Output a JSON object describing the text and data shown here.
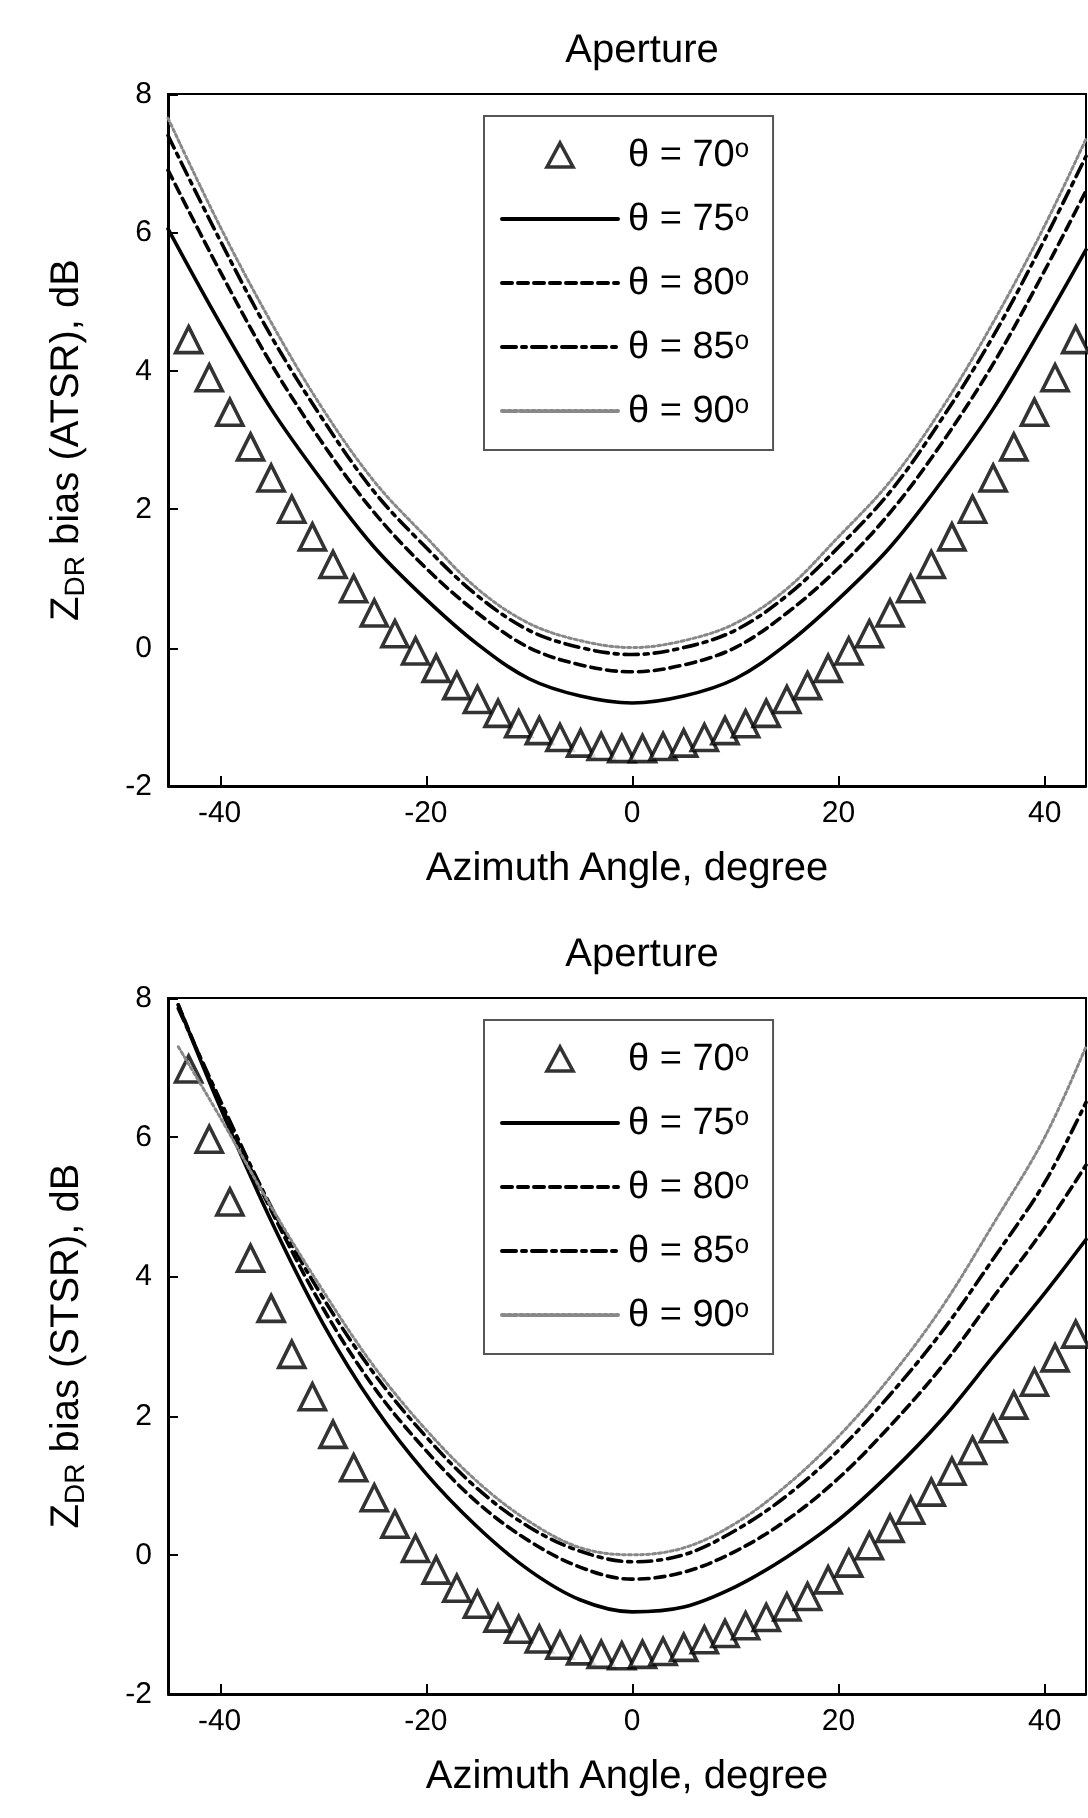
{
  "chart_data": [
    {
      "type": "line",
      "title": "Aperture",
      "xlabel": "Azimuth Angle, degree",
      "ylabel": "Z$_{DR}$ bias (ATSR), dB",
      "xlim": [
        -45,
        44
      ],
      "xticks": [
        -40,
        -20,
        0,
        20,
        40
      ],
      "ylim": [
        -2,
        8
      ],
      "yticks": [
        -2,
        0,
        2,
        4,
        6,
        8
      ],
      "grid": false,
      "legend": "top",
      "series": [
        {
          "name": "θ = 70ᵒ",
          "type": "scatter",
          "marker": "triangle",
          "color": "#000000",
          "x": [
            -43,
            -41,
            -39,
            -37,
            -35,
            -33,
            -31,
            -29,
            -27,
            -25,
            -23,
            -21,
            -19,
            -17,
            -15,
            -13,
            -11,
            -9,
            -7,
            -5,
            -3,
            -1,
            1,
            3,
            5,
            7,
            9,
            11,
            13,
            15,
            17,
            19,
            21,
            23,
            25,
            27,
            29,
            31,
            33,
            35,
            37,
            39,
            41,
            43
          ],
          "values": [
            4.45,
            3.9,
            3.4,
            2.9,
            2.45,
            2.0,
            1.6,
            1.2,
            0.85,
            0.5,
            0.2,
            -0.05,
            -0.3,
            -0.55,
            -0.75,
            -0.95,
            -1.1,
            -1.2,
            -1.3,
            -1.38,
            -1.43,
            -1.46,
            -1.46,
            -1.43,
            -1.38,
            -1.3,
            -1.2,
            -1.1,
            -0.95,
            -0.75,
            -0.55,
            -0.3,
            -0.05,
            0.2,
            0.5,
            0.85,
            1.2,
            1.6,
            2.0,
            2.45,
            2.9,
            3.4,
            3.9,
            4.45
          ]
        },
        {
          "name": "θ = 75ᵒ",
          "type": "line",
          "marker": "none",
          "line_style": "solid",
          "color": "#000000",
          "x": [
            -45,
            -40,
            -35,
            -30,
            -25,
            -20,
            -15,
            -10,
            -5,
            0,
            5,
            10,
            15,
            20,
            25,
            30,
            35,
            40,
            44
          ],
          "values": [
            6.05,
            4.7,
            3.45,
            2.4,
            1.45,
            0.7,
            0.05,
            -0.45,
            -0.7,
            -0.8,
            -0.7,
            -0.45,
            0.05,
            0.7,
            1.45,
            2.4,
            3.45,
            4.7,
            5.75
          ]
        },
        {
          "name": "θ = 80ᵒ",
          "type": "line",
          "marker": "none",
          "line_style": "dashed",
          "color": "#000000",
          "x": [
            -45,
            -40,
            -35,
            -30,
            -25,
            -20,
            -15,
            -10,
            -5,
            0,
            5,
            10,
            15,
            20,
            25,
            30,
            35,
            40,
            44
          ],
          "values": [
            6.9,
            5.45,
            4.1,
            2.95,
            1.95,
            1.15,
            0.5,
            0.0,
            -0.25,
            -0.35,
            -0.25,
            0.0,
            0.5,
            1.15,
            1.95,
            2.95,
            4.1,
            5.45,
            6.6
          ]
        },
        {
          "name": "θ = 85ᵒ",
          "type": "line",
          "marker": "none",
          "line_style": "dashdot",
          "color": "#000000",
          "x": [
            -45,
            -40,
            -35,
            -30,
            -25,
            -20,
            -15,
            -10,
            -5,
            0,
            5,
            10,
            15,
            20,
            25,
            30,
            35,
            40,
            44
          ],
          "values": [
            7.4,
            5.9,
            4.5,
            3.3,
            2.25,
            1.45,
            0.75,
            0.25,
            0.0,
            -0.1,
            0.0,
            0.25,
            0.75,
            1.45,
            2.25,
            3.3,
            4.5,
            5.9,
            7.1
          ]
        },
        {
          "name": "θ = 90ᵒ",
          "type": "line",
          "marker": "none",
          "line_style": "dotted",
          "color": "#888888",
          "x": [
            -45,
            -40,
            -35,
            -30,
            -25,
            -20,
            -15,
            -10,
            -5,
            0,
            5,
            10,
            15,
            20,
            25,
            30,
            35,
            40,
            44
          ],
          "values": [
            7.65,
            6.1,
            4.7,
            3.45,
            2.4,
            1.6,
            0.85,
            0.35,
            0.1,
            0,
            0.1,
            0.35,
            0.85,
            1.6,
            2.4,
            3.45,
            4.7,
            6.1,
            7.35
          ]
        }
      ]
    },
    {
      "type": "line",
      "title": "Aperture",
      "xlabel": "Azimuth Angle, degree",
      "ylabel": "Z$_{DR}$ bias (STSR), dB",
      "xlim": [
        -45,
        44
      ],
      "xticks": [
        -40,
        -20,
        0,
        20,
        40
      ],
      "ylim": [
        -2,
        8
      ],
      "yticks": [
        -2,
        0,
        2,
        4,
        6,
        8
      ],
      "grid": false,
      "legend": "top",
      "series": [
        {
          "name": "θ = 70ᵒ",
          "type": "scatter",
          "marker": "triangle",
          "color": "#000000",
          "x": [
            -43,
            -41,
            -39,
            -37,
            -35,
            -33,
            -31,
            -29,
            -27,
            -25,
            -23,
            -21,
            -19,
            -17,
            -15,
            -13,
            -11,
            -9,
            -7,
            -5,
            -3,
            -1,
            1,
            3,
            5,
            7,
            9,
            11,
            13,
            15,
            17,
            19,
            21,
            23,
            25,
            27,
            29,
            31,
            33,
            35,
            37,
            39,
            41,
            43
          ],
          "values": [
            6.98,
            5.97,
            5.07,
            4.26,
            3.54,
            2.88,
            2.27,
            1.73,
            1.25,
            0.82,
            0.44,
            0.09,
            -0.22,
            -0.48,
            -0.71,
            -0.91,
            -1.07,
            -1.21,
            -1.3,
            -1.38,
            -1.43,
            -1.45,
            -1.43,
            -1.39,
            -1.33,
            -1.22,
            -1.13,
            -1.02,
            -0.9,
            -0.75,
            -0.6,
            -0.36,
            -0.12,
            0.13,
            0.38,
            0.64,
            0.9,
            1.2,
            1.5,
            1.81,
            2.15,
            2.48,
            2.83,
            3.17
          ]
        },
        {
          "name": "θ = 75ᵒ",
          "type": "line",
          "marker": "none",
          "line_style": "solid",
          "color": "#000000",
          "x": [
            -44,
            -40,
            -35,
            -30,
            -25,
            -20,
            -15,
            -10,
            -5,
            0,
            5,
            10,
            15,
            20,
            25,
            30,
            35,
            40,
            44
          ],
          "values": [
            7.9,
            6.45,
            4.8,
            3.33,
            2.13,
            1.17,
            0.4,
            -0.22,
            -0.65,
            -0.82,
            -0.75,
            -0.46,
            -0.03,
            0.5,
            1.17,
            1.94,
            2.85,
            3.76,
            4.53
          ]
        },
        {
          "name": "θ = 80ᵒ",
          "type": "line",
          "marker": "none",
          "line_style": "dashed",
          "color": "#000000",
          "x": [
            -44,
            -40,
            -35,
            -30,
            -25,
            -20,
            -15,
            -10,
            -5,
            0,
            5,
            10,
            15,
            20,
            25,
            30,
            35,
            40,
            44
          ],
          "values": [
            7.9,
            6.5,
            4.95,
            3.55,
            2.4,
            1.5,
            0.75,
            0.2,
            -0.18,
            -0.35,
            -0.25,
            0.05,
            0.5,
            1.1,
            1.85,
            2.7,
            3.7,
            4.7,
            5.6
          ]
        },
        {
          "name": "θ = 85ᵒ",
          "type": "line",
          "marker": "none",
          "line_style": "dashdot",
          "color": "#000000",
          "x": [
            -44,
            -40,
            -35,
            -30,
            -25,
            -20,
            -15,
            -10,
            -5,
            0,
            5,
            10,
            15,
            20,
            25,
            30,
            35,
            40,
            44
          ],
          "values": [
            7.85,
            6.55,
            5.0,
            3.7,
            2.6,
            1.7,
            0.95,
            0.4,
            0.05,
            -0.1,
            0.0,
            0.35,
            0.85,
            1.5,
            2.3,
            3.2,
            4.25,
            5.35,
            6.5
          ]
        },
        {
          "name": "θ = 90ᵒ",
          "type": "line",
          "marker": "none",
          "line_style": "dotted",
          "color": "#888888",
          "x": [
            -44,
            -40,
            -35,
            -30,
            -25,
            -20,
            -15,
            -10,
            -5,
            0,
            5,
            10,
            15,
            20,
            25,
            30,
            35,
            40,
            44
          ],
          "values": [
            7.3,
            6.3,
            5.0,
            3.8,
            2.7,
            1.8,
            1.05,
            0.48,
            0.1,
            0,
            0.1,
            0.45,
            1.0,
            1.7,
            2.55,
            3.55,
            4.75,
            6.0,
            7.3
          ]
        }
      ]
    }
  ]
}
